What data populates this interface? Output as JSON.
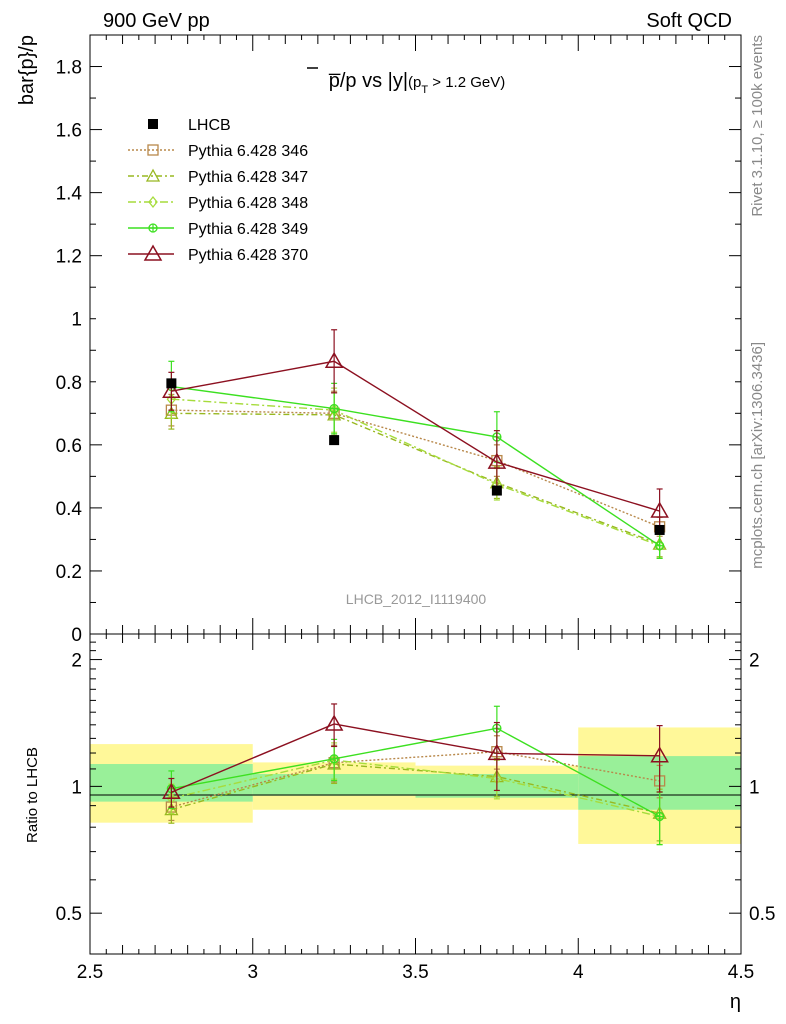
{
  "header": {
    "left": "900 GeV pp",
    "right": "Soft QCD"
  },
  "side_labels": {
    "rivet": "Rivet 3.1.10, ≥ 100k events",
    "mcplots": "mcplots.cern.ch [arXiv:1306.3436]"
  },
  "watermark": "LHCB_2012_I1119400",
  "colors": {
    "data": "#000000",
    "p346": "#b8884a",
    "p347": "#98b820",
    "p348": "#a6dc3c",
    "p349": "#3ce020",
    "p370": "#8c1020",
    "band_1sigma": "#99f099",
    "band_2sigma": "#fff899"
  },
  "chart_data": {
    "type": "line",
    "title": "p̅/p vs |y|(p_T > 1.2 GeV)",
    "title_parts": {
      "main": "p̅/p vs |y|",
      "sub_open": "(p",
      "sub_T": "T",
      "sub_close": " > 1.2 GeV)"
    },
    "xlabel": "η",
    "ylabel": "bar{p}/p",
    "ratio_ylabel": "Ratio to LHCB",
    "xlim": [
      2.5,
      4.5
    ],
    "ylim": [
      0,
      1.9
    ],
    "ratio_ylim": [
      0.4,
      2.3
    ],
    "x_ticks": [
      "2.5",
      "3",
      "3.5",
      "4",
      "4.5"
    ],
    "y_ticks": [
      "0",
      "0.2",
      "0.4",
      "0.6",
      "0.8",
      "1",
      "1.2",
      "1.4",
      "1.6",
      "1.8"
    ],
    "ratio_ticks": [
      "0.5",
      "1",
      "2"
    ],
    "legend_position": "top-left",
    "x": [
      2.75,
      3.25,
      3.75,
      4.25
    ],
    "bin_edges": [
      2.5,
      3.0,
      3.5,
      4.0,
      4.5
    ],
    "data": {
      "name": "LHCB",
      "values": [
        0.795,
        0.615,
        0.455,
        0.33
      ],
      "band_1sigma": [
        [
          0.92,
          1.13
        ],
        [
          0.95,
          1.07
        ],
        [
          0.94,
          1.07
        ],
        [
          0.88,
          1.18
        ]
      ],
      "band_2sigma": [
        [
          0.82,
          1.26
        ],
        [
          0.88,
          1.14
        ],
        [
          0.88,
          1.12
        ],
        [
          0.73,
          1.38
        ]
      ]
    },
    "series": [
      {
        "name": "Pythia 6.428 346",
        "key": "p346",
        "marker": "square-open",
        "dash": "2,2",
        "values": [
          0.71,
          0.7,
          0.55,
          0.34
        ],
        "err": [
          0.05,
          0.07,
          0.05,
          0.03
        ]
      },
      {
        "name": "Pythia 6.428 347",
        "key": "p347",
        "marker": "triangle-open",
        "dash": "6,3,2,3",
        "values": [
          0.7,
          0.695,
          0.48,
          0.285
        ],
        "err": [
          0.05,
          0.07,
          0.05,
          0.04
        ]
      },
      {
        "name": "Pythia 6.428 348",
        "key": "p348",
        "marker": "diamond-open",
        "dash": "8,3,2,3",
        "values": [
          0.745,
          0.71,
          0.475,
          0.28
        ],
        "err": [
          0.06,
          0.07,
          0.05,
          0.04
        ]
      },
      {
        "name": "Pythia 6.428 349",
        "key": "p349",
        "marker": "circle-cross",
        "dash": "",
        "values": [
          0.785,
          0.715,
          0.625,
          0.28
        ],
        "err": [
          0.08,
          0.08,
          0.08,
          0.04
        ]
      },
      {
        "name": "Pythia 6.428 370",
        "key": "p370",
        "marker": "triangle-big",
        "dash": "",
        "values": [
          0.77,
          0.865,
          0.545,
          0.39
        ],
        "err": [
          0.06,
          0.1,
          0.1,
          0.07
        ]
      }
    ]
  }
}
